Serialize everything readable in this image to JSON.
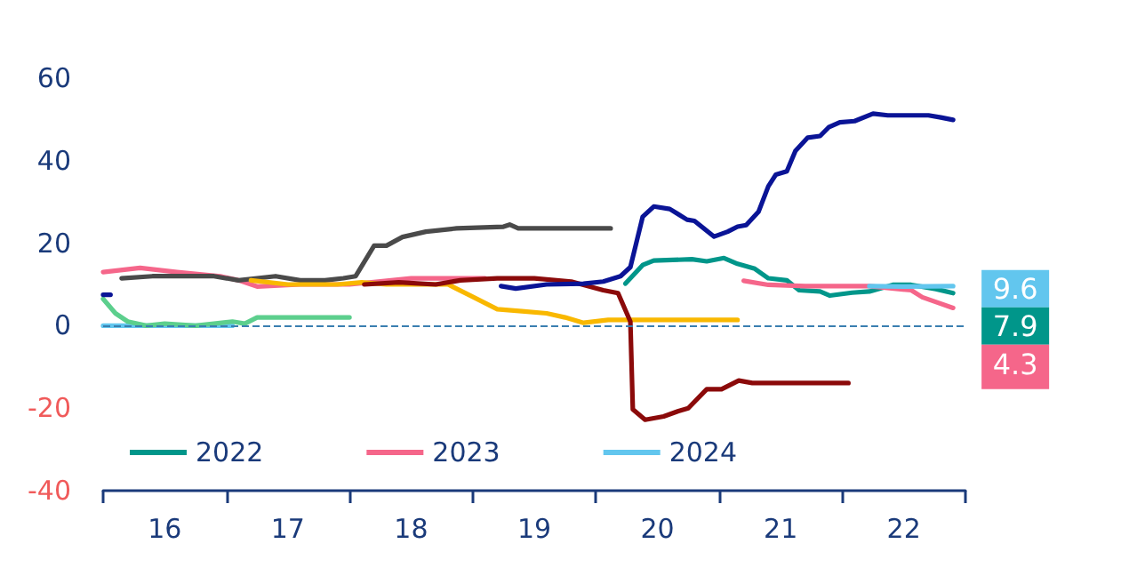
{
  "chart_data": {
    "type": "line",
    "marker": "none",
    "line_style": "solid",
    "grid": false,
    "legend": "bottom left",
    "xlim": [
      15.5,
      22.5
    ],
    "xticks": [
      {
        "value": 15.5,
        "label": null
      },
      {
        "value": 16.5,
        "label": null
      },
      {
        "value": 17.5,
        "label": null
      },
      {
        "value": 18.5,
        "label": null
      },
      {
        "value": 19.5,
        "label": null
      },
      {
        "value": 20.5,
        "label": null
      },
      {
        "value": 21.5,
        "label": null
      },
      {
        "value": 22.5,
        "label": null
      },
      16,
      17,
      18,
      19,
      20,
      21,
      22
    ],
    "ylim": [
      -40,
      60
    ],
    "yticks": [
      -40,
      -20,
      0,
      20,
      40,
      60
    ],
    "ref_lines": [
      {
        "axis": "y",
        "value": 0,
        "color": "#3a7fb0",
        "line_style": "dashed"
      }
    ],
    "series": [
      {
        "name": "2022",
        "color": "#00968a",
        "x": [
          19.74,
          19.88,
          19.97,
          20.28,
          20.4,
          20.54,
          20.65,
          20.79,
          20.9,
          21.05,
          21.15,
          21.32,
          21.4,
          21.58,
          21.72,
          21.91,
          22.06,
          22.26,
          22.4
        ],
        "values": [
          10.2,
          14.7,
          15.8,
          16.1,
          15.6,
          16.4,
          15,
          13.8,
          11.5,
          11,
          8.6,
          8.3,
          7.3,
          8,
          8.3,
          9.9,
          9.9,
          8.9,
          7.9
        ],
        "value_labels": [
          null,
          null,
          null,
          null,
          null,
          null,
          null,
          null,
          null,
          null,
          null,
          null,
          null,
          null,
          null,
          null,
          null,
          null,
          "7.9"
        ]
      },
      {
        "name": "2023",
        "color": "#f5668a",
        "x": [
          15.5,
          15.8,
          16.1,
          16.45,
          16.6,
          16.75,
          17.1,
          17.5,
          18,
          18.6,
          18.65,
          20.7,
          20.9,
          21.2,
          21.72,
          22.06,
          22.15,
          22.4
        ],
        "values": [
          13,
          14,
          13,
          12,
          11,
          9.5,
          10,
          10,
          11.5,
          11.5,
          null,
          10.9,
          9.9,
          9.6,
          9.6,
          8.6,
          6.9,
          4.3
        ],
        "value_labels": [
          null,
          null,
          null,
          null,
          null,
          null,
          null,
          null,
          null,
          null,
          null,
          null,
          null,
          null,
          null,
          null,
          null,
          "4.3"
        ]
      },
      {
        "name": "2024",
        "color": "#62c6ee",
        "x": [
          15.5,
          16,
          16.55,
          16.6,
          21.72,
          22,
          22.4
        ],
        "values": [
          0,
          0,
          0,
          null,
          9.6,
          9.5,
          9.6
        ],
        "value_labels": [
          null,
          null,
          null,
          null,
          null,
          null,
          "9.6"
        ]
      },
      {
        "color": "#5ccf8d",
        "x": [
          15.5,
          15.6,
          15.7,
          15.85,
          16,
          16.25,
          16.4,
          16.55,
          16.65,
          16.75,
          17,
          17.5
        ],
        "values": [
          6.5,
          3,
          1,
          0,
          0.5,
          0,
          0.5,
          1,
          0.5,
          2,
          2,
          2
        ]
      },
      {
        "color": "#4a4a4a",
        "x": [
          15.65,
          15.9,
          16.4,
          16.6,
          16.75,
          16.9,
          17.1,
          17.3,
          17.45,
          17.55,
          17.7,
          17.8,
          17.93,
          18.12,
          18.37,
          18.75,
          18.8,
          18.87,
          19.62
        ],
        "values": [
          11.5,
          12,
          12,
          11,
          11.5,
          12,
          11,
          11,
          11.5,
          12,
          19.4,
          19.4,
          21.5,
          22.8,
          23.6,
          24,
          24.5,
          23.6,
          23.6
        ]
      },
      {
        "color": "#f9b800",
        "x": [
          16.7,
          17,
          17.4,
          17.6,
          17.8,
          18.3,
          18.5,
          18.7,
          18.9,
          19.1,
          19.25,
          19.4,
          19.6,
          20.65
        ],
        "values": [
          11,
          10,
          10,
          10.5,
          10,
          10,
          7,
          4,
          3.5,
          3,
          2,
          0.7,
          1.4,
          1.4
        ]
      },
      {
        "color": "#8b0a0a",
        "x": [
          17.62,
          17.9,
          18.2,
          18.4,
          18.7,
          19,
          19.3,
          19.56,
          19.68,
          19.78,
          19.8,
          19.9,
          20.05,
          20.17,
          20.25,
          20.4,
          20.52,
          20.66,
          20.77,
          21.55
        ],
        "values": [
          10,
          10.5,
          10,
          11,
          11.5,
          11.5,
          10.7,
          8.6,
          7.9,
          1,
          -20.3,
          -22.8,
          -22,
          -20.7,
          -20,
          -15.4,
          -15.4,
          -13.3,
          -13.9,
          -13.9
        ]
      },
      {
        "color": "#0a1496",
        "x": [
          15.5,
          15.56,
          15.6,
          18.73,
          18.85,
          19.1,
          19.4,
          19.56,
          19.7,
          19.78,
          19.88,
          19.97,
          20.1,
          20.24,
          20.3,
          20.46,
          20.57,
          20.65,
          20.72,
          20.82,
          20.9,
          20.96,
          21.05,
          21.12,
          21.22,
          21.32,
          21.39,
          21.48,
          21.6,
          21.75,
          21.87,
          22.2,
          22.3,
          22.4
        ],
        "values": [
          7.5,
          7.5,
          null,
          9.6,
          9,
          10,
          10.2,
          10.7,
          12,
          14.2,
          26.4,
          28.9,
          28.3,
          25.7,
          25.4,
          21.6,
          22.8,
          24,
          24.4,
          27.6,
          33.8,
          36.6,
          37.4,
          42.4,
          45.6,
          46,
          48.1,
          49.3,
          49.6,
          51.4,
          51,
          51,
          50.5,
          49.9
        ]
      }
    ]
  }
}
